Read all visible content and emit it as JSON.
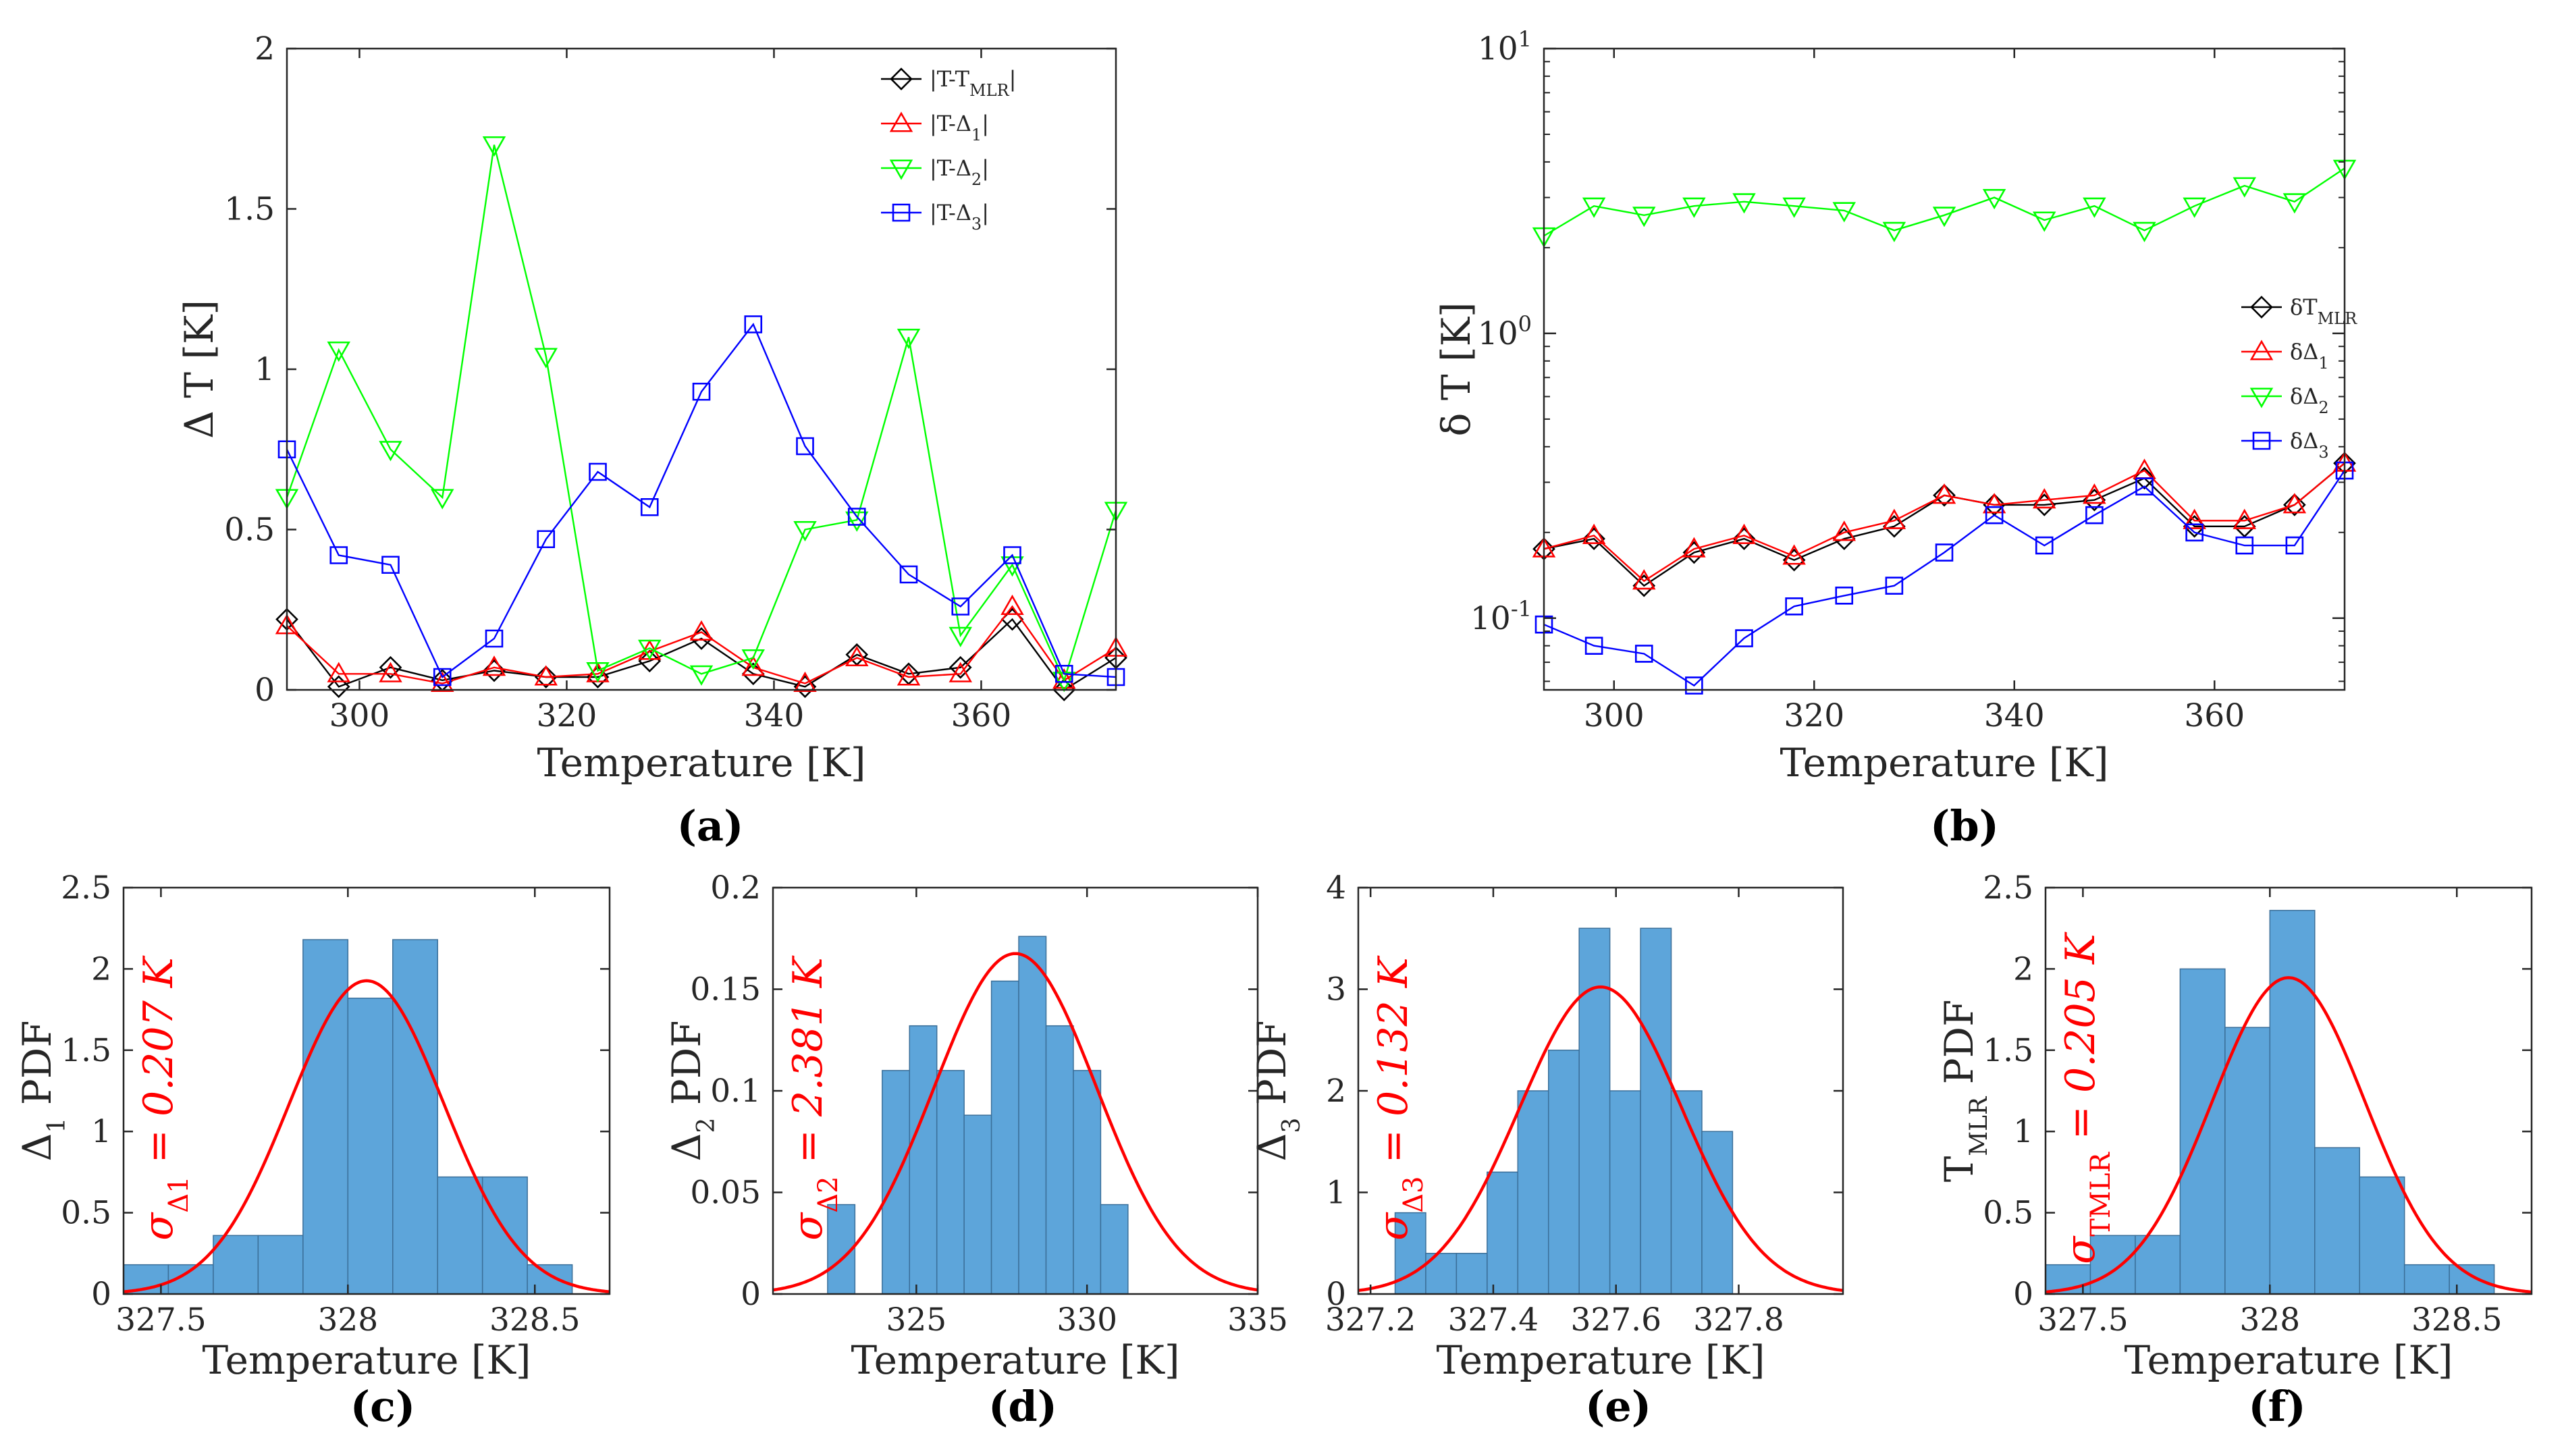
{
  "colors": {
    "black": "#000000",
    "red": "#ff0000",
    "green": "#00ff00",
    "blue": "#0000ff",
    "hist": "#5da5da",
    "hist_edge": "#3b6f99",
    "fit": "#ff0000"
  },
  "chart_data": [
    {
      "id": "a",
      "type": "line",
      "panel_label": "(a)",
      "xlabel": "Temperature [K]",
      "ylabel": "Δ T [K]",
      "xlim": [
        293,
        373
      ],
      "ylim": [
        0,
        2
      ],
      "xticks": [
        300,
        320,
        340,
        360
      ],
      "xtick_labels": [
        "300",
        "320",
        "340",
        "360"
      ],
      "yticks": [
        0,
        0.5,
        1,
        1.5,
        2
      ],
      "ytick_labels": [
        "0",
        "0.5",
        "1",
        "1.5",
        "2"
      ],
      "legend_position": "top-right",
      "x": [
        293,
        298,
        303,
        308,
        313,
        318,
        323,
        328,
        333,
        338,
        343,
        348,
        353,
        358,
        363,
        368,
        373
      ],
      "series": [
        {
          "name": "|T-T",
          "sub": "MLR",
          "tail": "|",
          "color": "#000000",
          "marker": "diamond",
          "values": [
            0.22,
            0.01,
            0.07,
            0.03,
            0.06,
            0.04,
            0.04,
            0.09,
            0.16,
            0.05,
            0.01,
            0.11,
            0.05,
            0.07,
            0.22,
            0.0,
            0.1
          ]
        },
        {
          "name": "|T-Δ",
          "sub": "1",
          "tail": "|",
          "color": "#ff0000",
          "marker": "triangle-up",
          "values": [
            0.2,
            0.05,
            0.05,
            0.02,
            0.07,
            0.04,
            0.05,
            0.12,
            0.18,
            0.07,
            0.02,
            0.1,
            0.04,
            0.05,
            0.26,
            0.03,
            0.13
          ]
        },
        {
          "name": "|T-Δ",
          "sub": "2",
          "tail": "|",
          "color": "#00ff00",
          "marker": "triangle-down",
          "values": [
            0.6,
            1.06,
            0.75,
            0.6,
            1.7,
            1.04,
            0.06,
            0.13,
            0.05,
            0.1,
            0.5,
            0.53,
            1.1,
            0.17,
            0.39,
            0.03,
            0.56
          ]
        },
        {
          "name": "|T-Δ",
          "sub": "3",
          "tail": "|",
          "color": "#0000ff",
          "marker": "square",
          "values": [
            0.75,
            0.42,
            0.39,
            0.04,
            0.16,
            0.47,
            0.68,
            0.57,
            0.93,
            1.14,
            0.76,
            0.54,
            0.36,
            0.26,
            0.42,
            0.05,
            0.04
          ]
        }
      ]
    },
    {
      "id": "b",
      "type": "line",
      "yscale": "log",
      "panel_label": "(b)",
      "xlabel": "Temperature [K]",
      "ylabel": "δ T [K]",
      "xlim": [
        293,
        373
      ],
      "ylim": [
        0.056,
        10
      ],
      "xticks": [
        300,
        320,
        340,
        360
      ],
      "xtick_labels": [
        "300",
        "320",
        "340",
        "360"
      ],
      "yticks": [
        0.1,
        1,
        10
      ],
      "ytick_base": "10",
      "ytick_exponents": [
        "-1",
        "0",
        "1"
      ],
      "legend_position": "right",
      "x": [
        293,
        298,
        303,
        308,
        313,
        318,
        323,
        328,
        333,
        338,
        343,
        348,
        353,
        358,
        363,
        368,
        373
      ],
      "series": [
        {
          "name": "δT",
          "sub": "MLR",
          "color": "#000000",
          "marker": "diamond",
          "values": [
            0.175,
            0.19,
            0.13,
            0.17,
            0.19,
            0.16,
            0.19,
            0.21,
            0.27,
            0.25,
            0.25,
            0.26,
            0.31,
            0.21,
            0.21,
            0.25,
            0.35
          ]
        },
        {
          "name": "δΔ",
          "sub": "1",
          "color": "#ff0000",
          "marker": "triangle-up",
          "values": [
            0.175,
            0.195,
            0.135,
            0.175,
            0.195,
            0.165,
            0.2,
            0.22,
            0.27,
            0.25,
            0.26,
            0.27,
            0.33,
            0.22,
            0.22,
            0.25,
            0.35
          ]
        },
        {
          "name": "δΔ",
          "sub": "2",
          "color": "#00ff00",
          "marker": "triangle-down",
          "values": [
            2.2,
            2.8,
            2.6,
            2.8,
            2.9,
            2.8,
            2.7,
            2.3,
            2.6,
            3.0,
            2.5,
            2.8,
            2.3,
            2.8,
            3.3,
            2.9,
            3.8
          ]
        },
        {
          "name": "δΔ",
          "sub": "3",
          "color": "#0000ff",
          "marker": "square",
          "values": [
            0.095,
            0.08,
            0.075,
            0.058,
            0.085,
            0.11,
            0.12,
            0.13,
            0.17,
            0.23,
            0.18,
            0.23,
            0.29,
            0.2,
            0.18,
            0.18,
            0.33
          ]
        }
      ]
    },
    {
      "id": "c",
      "type": "histogram",
      "panel_label": "(c)",
      "xlabel": "Temperature [K]",
      "ylabel_main": "Δ",
      "ylabel_sub": "1",
      "ylabel_tail": " PDF",
      "xlim": [
        327.4,
        328.7
      ],
      "ylim": [
        0,
        2.5
      ],
      "xticks": [
        327.5,
        328,
        328.5
      ],
      "xtick_labels": [
        "327.5",
        "328",
        "328.5"
      ],
      "yticks": [
        0,
        0.5,
        1,
        1.5,
        2,
        2.5
      ],
      "ytick_labels": [
        "0",
        "0.5",
        "1",
        "1.5",
        "2",
        "2.5"
      ],
      "bin_edges": [
        327.4,
        327.52,
        327.64,
        327.76,
        327.88,
        328.0,
        328.12,
        328.24,
        328.36,
        328.48,
        328.6
      ],
      "values": [
        0.18,
        0.18,
        0.36,
        0.36,
        2.18,
        1.82,
        2.18,
        0.72,
        0.72,
        0.18
      ],
      "fit": {
        "mean": 328.05,
        "sigma": 0.207
      },
      "sigma_label": "σ",
      "sigma_sub": "Δ1",
      "sigma_value": " = 0.207 K"
    },
    {
      "id": "d",
      "type": "histogram",
      "panel_label": "(d)",
      "xlabel": "Temperature [K]",
      "ylabel_main": "Δ",
      "ylabel_sub": "2",
      "ylabel_tail": " PDF",
      "xlim": [
        320.8,
        335
      ],
      "ylim": [
        0,
        0.2
      ],
      "xticks": [
        325,
        330,
        335
      ],
      "xtick_labels": [
        "325",
        "330",
        "335"
      ],
      "yticks": [
        0,
        0.05,
        0.1,
        0.15,
        0.2
      ],
      "ytick_labels": [
        "0",
        "0.05",
        "0.1",
        "0.15",
        "0.2"
      ],
      "bin_edges": [
        322.4,
        323.2,
        324.0,
        324.8,
        325.6,
        326.4,
        327.2,
        328.0,
        328.8,
        329.6,
        330.4,
        331.2,
        332.0
      ],
      "values": [
        0.044,
        0.0,
        0.11,
        0.132,
        0.11,
        0.088,
        0.154,
        0.176,
        0.132,
        0.11,
        0.044,
        0.0
      ],
      "fit": {
        "mean": 327.9,
        "sigma": 2.381
      },
      "sigma_label": "σ",
      "sigma_sub": "Δ2",
      "sigma_value": " = 2.381 K"
    },
    {
      "id": "e",
      "type": "histogram",
      "panel_label": "(e)",
      "xlabel": "Temperature [K]",
      "ylabel_main": "Δ",
      "ylabel_sub": "3",
      "ylabel_tail": " PDF",
      "xlim": [
        327.18,
        327.97
      ],
      "ylim": [
        0,
        4
      ],
      "xticks": [
        327.2,
        327.4,
        327.6,
        327.8
      ],
      "xtick_labels": [
        "327.2",
        "327.4",
        "327.6",
        "327.8"
      ],
      "yticks": [
        0,
        1,
        2,
        3,
        4
      ],
      "ytick_labels": [
        "0",
        "1",
        "2",
        "3",
        "4"
      ],
      "bin_edges": [
        327.24,
        327.29,
        327.34,
        327.39,
        327.44,
        327.49,
        327.54,
        327.59,
        327.64,
        327.69,
        327.74,
        327.79
      ],
      "values": [
        0.8,
        0.4,
        0.4,
        1.2,
        2.0,
        2.4,
        3.6,
        2.0,
        3.6,
        2.0,
        1.6
      ],
      "fit": {
        "mean": 327.575,
        "sigma": 0.132
      },
      "sigma_label": "σ",
      "sigma_sub": "Δ3",
      "sigma_value": " = 0.132 K"
    },
    {
      "id": "f",
      "type": "histogram",
      "panel_label": "(f)",
      "xlabel": "Temperature [K]",
      "ylabel_main": "T",
      "ylabel_sub": "MLR",
      "ylabel_tail": " PDF",
      "xlim": [
        327.4,
        328.7
      ],
      "ylim": [
        0,
        2.5
      ],
      "xticks": [
        327.5,
        328,
        328.5
      ],
      "xtick_labels": [
        "327.5",
        "328",
        "328.5"
      ],
      "yticks": [
        0,
        0.5,
        1,
        1.5,
        2,
        2.5
      ],
      "ytick_labels": [
        "0",
        "0.5",
        "1",
        "1.5",
        "2",
        "2.5"
      ],
      "bin_edges": [
        327.4,
        327.52,
        327.64,
        327.76,
        327.88,
        328.0,
        328.12,
        328.24,
        328.36,
        328.48,
        328.6
      ],
      "values": [
        0.18,
        0.36,
        0.36,
        2.0,
        1.64,
        2.36,
        0.9,
        0.72,
        0.18,
        0.18
      ],
      "fit": {
        "mean": 328.05,
        "sigma": 0.205
      },
      "sigma_label": "σ",
      "sigma_sub": "TMLR",
      "sigma_value": " = 0.205 K"
    }
  ]
}
